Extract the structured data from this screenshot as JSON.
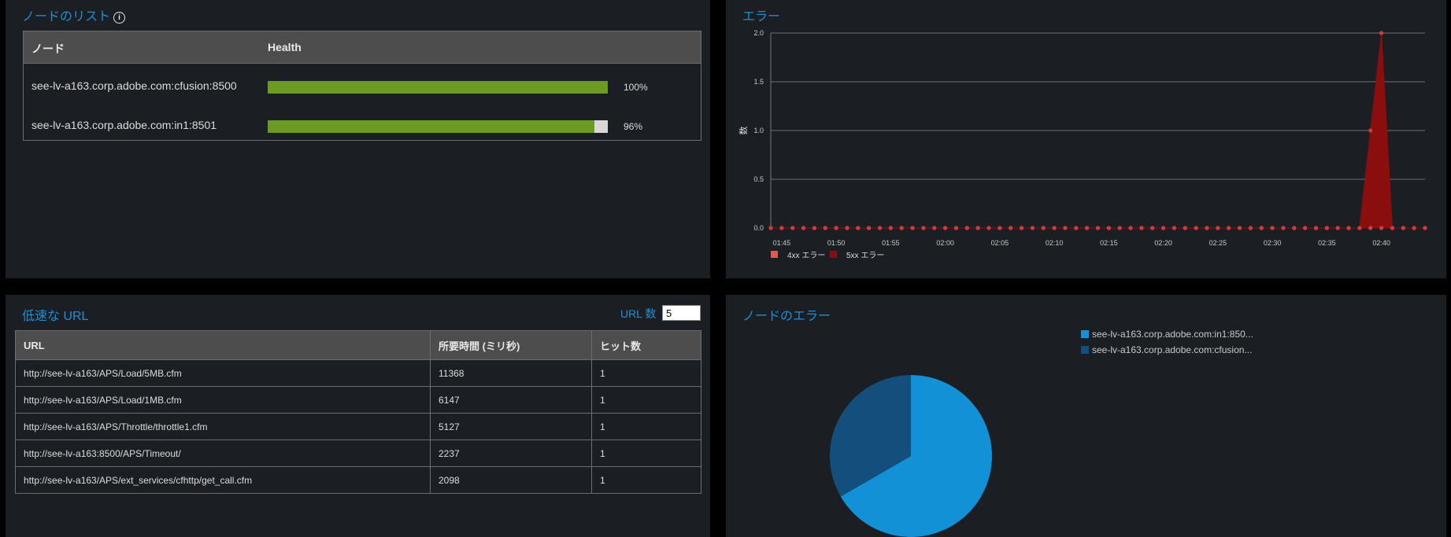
{
  "node_list": {
    "title": "ノードのリスト",
    "header_node": "ノード",
    "header_health": "Health",
    "nodes": [
      {
        "name": "see-lv-a163.corp.adobe.com:cfusion:8500",
        "health": 100,
        "health_label": "100%"
      },
      {
        "name": "see-lv-a163.corp.adobe.com:in1:8501",
        "health": 96,
        "health_label": "96%"
      }
    ]
  },
  "errors_chart": {
    "title": "エラー",
    "ylabel": "数",
    "colors": {
      "4xx": "#e0584f",
      "5xx": "#8b0e0e"
    },
    "chart_data": {
      "type": "area",
      "x": [
        "01:44",
        "01:45",
        "01:46",
        "01:47",
        "01:48",
        "01:49",
        "01:50",
        "01:51",
        "01:52",
        "01:53",
        "01:54",
        "01:55",
        "01:56",
        "01:57",
        "01:58",
        "01:59",
        "02:00",
        "02:01",
        "02:02",
        "02:03",
        "02:04",
        "02:05",
        "02:06",
        "02:07",
        "02:08",
        "02:09",
        "02:10",
        "02:11",
        "02:12",
        "02:13",
        "02:14",
        "02:15",
        "02:16",
        "02:17",
        "02:18",
        "02:19",
        "02:20",
        "02:21",
        "02:22",
        "02:23",
        "02:24",
        "02:25",
        "02:26",
        "02:27",
        "02:28",
        "02:29",
        "02:30",
        "02:31",
        "02:32",
        "02:33",
        "02:34",
        "02:35",
        "02:36",
        "02:37",
        "02:38",
        "02:39",
        "02:40",
        "02:41",
        "02:42",
        "02:43",
        "02:44"
      ],
      "xtick_labels": [
        "01:45",
        "01:50",
        "01:55",
        "02:00",
        "02:05",
        "02:10",
        "02:15",
        "02:20",
        "02:25",
        "02:30",
        "02:35",
        "02:40"
      ],
      "ytick_labels": [
        "2.0",
        "1.5",
        "1.0",
        "0.5",
        "0.0"
      ],
      "ylim": [
        0,
        2
      ],
      "grid": true,
      "legend_position": "bottom-left",
      "series": [
        {
          "name": "4xx エラー",
          "values": [
            0,
            0,
            0,
            0,
            0,
            0,
            0,
            0,
            0,
            0,
            0,
            0,
            0,
            0,
            0,
            0,
            0,
            0,
            0,
            0,
            0,
            0,
            0,
            0,
            0,
            0,
            0,
            0,
            0,
            0,
            0,
            0,
            0,
            0,
            0,
            0,
            0,
            0,
            0,
            0,
            0,
            0,
            0,
            0,
            0,
            0,
            0,
            0,
            0,
            0,
            0,
            0,
            0,
            0,
            0,
            0,
            0,
            0,
            0,
            0,
            0
          ]
        },
        {
          "name": "5xx エラー",
          "values": [
            0,
            0,
            0,
            0,
            0,
            0,
            0,
            0,
            0,
            0,
            0,
            0,
            0,
            0,
            0,
            0,
            0,
            0,
            0,
            0,
            0,
            0,
            0,
            0,
            0,
            0,
            0,
            0,
            0,
            0,
            0,
            0,
            0,
            0,
            0,
            0,
            0,
            0,
            0,
            0,
            0,
            0,
            0,
            0,
            0,
            0,
            0,
            0,
            0,
            0,
            0,
            0,
            0,
            0,
            0,
            1,
            2,
            0,
            0,
            0,
            0
          ]
        }
      ]
    }
  },
  "slow_urls": {
    "title": "低速な URL",
    "count_label": "URL 数",
    "count_value": "5",
    "headers": [
      "URL",
      "所要時間 (ミリ秒)",
      "ヒット数"
    ],
    "rows": [
      [
        "http://see-lv-a163/APS/Load/5MB.cfm",
        "11368",
        "1"
      ],
      [
        "http://see-lv-a163/APS/Load/1MB.cfm",
        "6147",
        "1"
      ],
      [
        "http://see-lv-a163/APS/Throttle/throttle1.cfm",
        "5127",
        "1"
      ],
      [
        "http://see-lv-a163:8500/APS/Timeout/",
        "2237",
        "1"
      ],
      [
        "http://see-lv-a163/APS/ext_services/cfhttp/get_call.cfm",
        "2098",
        "1"
      ]
    ]
  },
  "node_errors": {
    "title": "ノードのエラー",
    "chart_data": {
      "type": "pie",
      "legend_position": "top-right",
      "slices": [
        {
          "label": "see-lv-a163.corp.adobe.com:in1:850...",
          "value": 2,
          "color": "#1391d6"
        },
        {
          "label": "see-lv-a163.corp.adobe.com:cfusion...",
          "value": 1,
          "color": "#134e7c"
        }
      ]
    }
  }
}
